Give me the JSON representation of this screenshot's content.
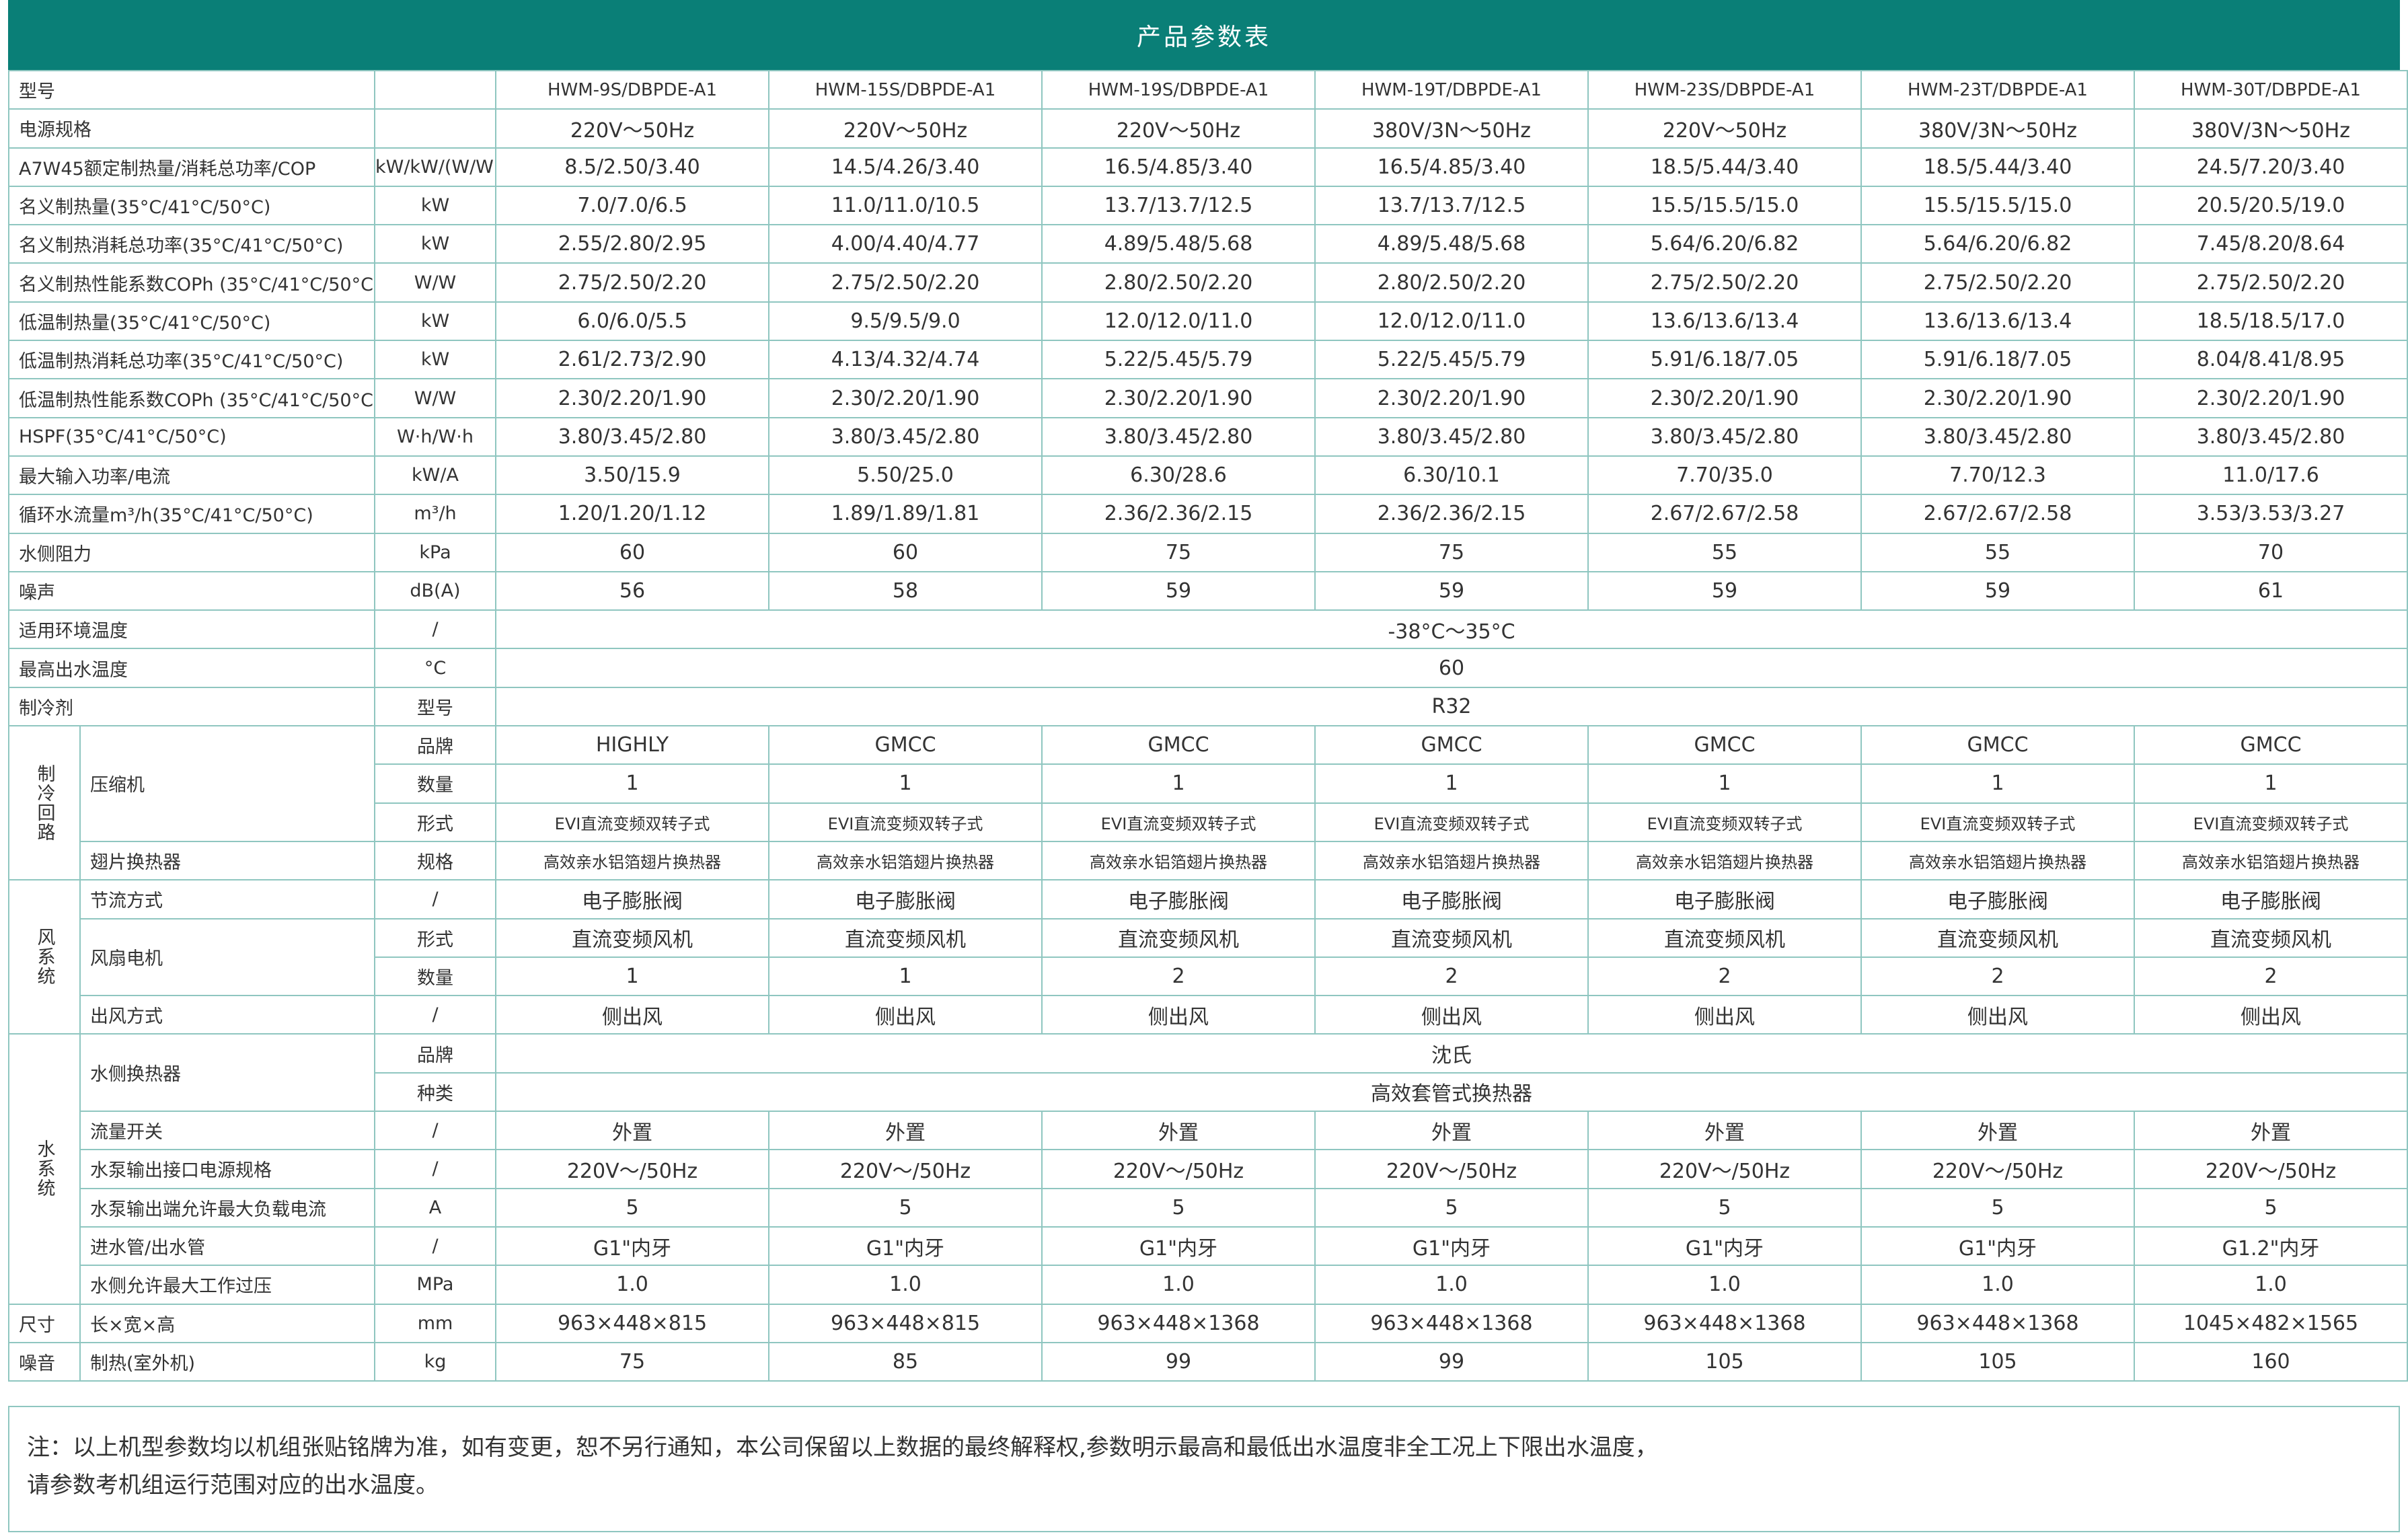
{
  "title": "产品参数表",
  "models": [
    "HWM-9S/DBPDE-A1",
    "HWM-15S/DBPDE-A1",
    "HWM-19S/DBPDE-A1",
    "HWM-19T/DBPDE-A1",
    "HWM-23S/DBPDE-A1",
    "HWM-23T/DBPDE-A1",
    "HWM-30T/DBPDE-A1"
  ],
  "rows": {
    "model_label": "型号",
    "power": {
      "label": "电源规格",
      "unit": "",
      "values": [
        "220V～50Hz",
        "220V～50Hz",
        "220V～50Hz",
        "380V/3N～50Hz",
        "220V～50Hz",
        "380V/3N～50Hz",
        "380V/3N～50Hz"
      ]
    },
    "a7w45": {
      "label": "A7W45额定制热量/消耗总功率/COP",
      "unit": "kW/kW/(W/W)",
      "values": [
        "8.5/2.50/3.40",
        "14.5/4.26/3.40",
        "16.5/4.85/3.40",
        "16.5/4.85/3.40",
        "18.5/5.44/3.40",
        "18.5/5.44/3.40",
        "24.5/7.20/3.40"
      ]
    },
    "nom_heat": {
      "label": "名义制热量(35°C/41°C/50°C)",
      "unit": "kW",
      "values": [
        "7.0/7.0/6.5",
        "11.0/11.0/10.5",
        "13.7/13.7/12.5",
        "13.7/13.7/12.5",
        "15.5/15.5/15.0",
        "15.5/15.5/15.0",
        "20.5/20.5/19.0"
      ]
    },
    "nom_power": {
      "label": "名义制热消耗总功率(35°C/41°C/50°C)",
      "unit": "kW",
      "values": [
        "2.55/2.80/2.95",
        "4.00/4.40/4.77",
        "4.89/5.48/5.68",
        "4.89/5.48/5.68",
        "5.64/6.20/6.82",
        "5.64/6.20/6.82",
        "7.45/8.20/8.64"
      ]
    },
    "nom_cop": {
      "label": "名义制热性能系数COPh (35°C/41°C/50°C)",
      "unit": "W/W",
      "values": [
        "2.75/2.50/2.20",
        "2.75/2.50/2.20",
        "2.80/2.50/2.20",
        "2.80/2.50/2.20",
        "2.75/2.50/2.20",
        "2.75/2.50/2.20",
        "2.75/2.50/2.20"
      ]
    },
    "low_heat": {
      "label": "低温制热量(35°C/41°C/50°C)",
      "unit": "kW",
      "values": [
        "6.0/6.0/5.5",
        "9.5/9.5/9.0",
        "12.0/12.0/11.0",
        "12.0/12.0/11.0",
        "13.6/13.6/13.4",
        "13.6/13.6/13.4",
        "18.5/18.5/17.0"
      ]
    },
    "low_power": {
      "label": "低温制热消耗总功率(35°C/41°C/50°C)",
      "unit": "kW",
      "values": [
        "2.61/2.73/2.90",
        "4.13/4.32/4.74",
        "5.22/5.45/5.79",
        "5.22/5.45/5.79",
        "5.91/6.18/7.05",
        "5.91/6.18/7.05",
        "8.04/8.41/8.95"
      ]
    },
    "low_cop": {
      "label": "低温制热性能系数COPh (35°C/41°C/50°C)",
      "unit": "W/W",
      "values": [
        "2.30/2.20/1.90",
        "2.30/2.20/1.90",
        "2.30/2.20/1.90",
        "2.30/2.20/1.90",
        "2.30/2.20/1.90",
        "2.30/2.20/1.90",
        "2.30/2.20/1.90"
      ]
    },
    "hspf": {
      "label": "HSPF(35°C/41°C/50°C)",
      "unit": "W·h/W·h",
      "values": [
        "3.80/3.45/2.80",
        "3.80/3.45/2.80",
        "3.80/3.45/2.80",
        "3.80/3.45/2.80",
        "3.80/3.45/2.80",
        "3.80/3.45/2.80",
        "3.80/3.45/2.80"
      ]
    },
    "max_input": {
      "label": "最大输入功率/电流",
      "unit": "kW/A",
      "values": [
        "3.50/15.9",
        "5.50/25.0",
        "6.30/28.6",
        "6.30/10.1",
        "7.70/35.0",
        "7.70/12.3",
        "11.0/17.6"
      ]
    },
    "flow": {
      "label": "循环水流量m³/h(35°C/41°C/50°C)",
      "unit": "m³/h",
      "values": [
        "1.20/1.20/1.12",
        "1.89/1.89/1.81",
        "2.36/2.36/2.15",
        "2.36/2.36/2.15",
        "2.67/2.67/2.58",
        "2.67/2.67/2.58",
        "3.53/3.53/3.27"
      ]
    },
    "water_res": {
      "label": "水侧阻力",
      "unit": "kPa",
      "values": [
        "60",
        "60",
        "75",
        "75",
        "55",
        "55",
        "70"
      ]
    },
    "noise": {
      "label": "噪声",
      "unit": "dB(A)",
      "values": [
        "56",
        "58",
        "59",
        "59",
        "59",
        "59",
        "61"
      ]
    },
    "ambient": {
      "label": "适用环境温度",
      "unit": "/",
      "value": "-38°C～35°C"
    },
    "max_out": {
      "label": "最高出水温度",
      "unit": "°C",
      "value": "60"
    },
    "refrigerant": {
      "label": "制冷剂",
      "unit": "型号",
      "value": "R32"
    }
  },
  "refrig_circuit": {
    "group": "制冷回路",
    "compressor": {
      "label": "压缩机",
      "brand": {
        "unit": "品牌",
        "values": [
          "HIGHLY",
          "GMCC",
          "GMCC",
          "GMCC",
          "GMCC",
          "GMCC",
          "GMCC"
        ]
      },
      "qty": {
        "unit": "数量",
        "values": [
          "1",
          "1",
          "1",
          "1",
          "1",
          "1",
          "1"
        ]
      },
      "form": {
        "unit": "形式",
        "values": [
          "EVI直流变频双转子式",
          "EVI直流变频双转子式",
          "EVI直流变频双转子式",
          "EVI直流变频双转子式",
          "EVI直流变频双转子式",
          "EVI直流变频双转子式",
          "EVI直流变频双转子式"
        ]
      }
    },
    "fin": {
      "label": "翅片换热器",
      "unit": "规格",
      "values": [
        "高效亲水铝箔翅片换热器",
        "高效亲水铝箔翅片换热器",
        "高效亲水铝箔翅片换热器",
        "高效亲水铝箔翅片换热器",
        "高效亲水铝箔翅片换热器",
        "高效亲水铝箔翅片换热器",
        "高效亲水铝箔翅片换热器"
      ]
    }
  },
  "wind_system": {
    "group": "风系统",
    "throttle": {
      "label": "节流方式",
      "unit": "/",
      "values": [
        "电子膨胀阀",
        "电子膨胀阀",
        "电子膨胀阀",
        "电子膨胀阀",
        "电子膨胀阀",
        "电子膨胀阀",
        "电子膨胀阀"
      ]
    },
    "fan": {
      "label": "风扇电机",
      "form": {
        "unit": "形式",
        "values": [
          "直流变频风机",
          "直流变频风机",
          "直流变频风机",
          "直流变频风机",
          "直流变频风机",
          "直流变频风机",
          "直流变频风机"
        ]
      },
      "qty": {
        "unit": "数量",
        "values": [
          "1",
          "1",
          "2",
          "2",
          "2",
          "2",
          "2"
        ]
      }
    },
    "outlet": {
      "label": "出风方式",
      "unit": "/",
      "values": [
        "侧出风",
        "侧出风",
        "侧出风",
        "侧出风",
        "侧出风",
        "侧出风",
        "侧出风"
      ]
    }
  },
  "water_system": {
    "group": "水系统",
    "hx": {
      "label": "水侧换热器",
      "brand": {
        "unit": "品牌",
        "value": "沈氏"
      },
      "type": {
        "unit": "种类",
        "value": "高效套管式换热器"
      }
    },
    "flow_switch": {
      "label": "流量开关",
      "unit": "/",
      "values": [
        "外置",
        "外置",
        "外置",
        "外置",
        "外置",
        "外置",
        "外置"
      ]
    },
    "pump_power": {
      "label": "水泵输出接口电源规格",
      "unit": "/",
      "values": [
        "220V～/50Hz",
        "220V～/50Hz",
        "220V～/50Hz",
        "220V～/50Hz",
        "220V～/50Hz",
        "220V～/50Hz",
        "220V～/50Hz"
      ]
    },
    "pump_current": {
      "label": "水泵输出端允许最大负载电流",
      "unit": "A",
      "values": [
        "5",
        "5",
        "5",
        "5",
        "5",
        "5",
        "5"
      ]
    },
    "pipes": {
      "label": "进水管/出水管",
      "unit": "/",
      "values": [
        "G1\"内牙",
        "G1\"内牙",
        "G1\"内牙",
        "G1\"内牙",
        "G1\"内牙",
        "G1\"内牙",
        "G1.2\"内牙"
      ]
    },
    "max_press": {
      "label": "水侧允许最大工作过压",
      "unit": "MPa",
      "values": [
        "1.0",
        "1.0",
        "1.0",
        "1.0",
        "1.0",
        "1.0",
        "1.0"
      ]
    }
  },
  "dimensions": {
    "group": "尺寸",
    "label": "长×宽×高",
    "unit": "mm",
    "values": [
      "963×448×815",
      "963×448×815",
      "963×448×1368",
      "963×448×1368",
      "963×448×1368",
      "963×448×1368",
      "1045×482×1565"
    ]
  },
  "weight": {
    "group": "噪音",
    "label": "制热(室外机)",
    "unit": "kg",
    "values": [
      "75",
      "85",
      "99",
      "99",
      "105",
      "105",
      "160"
    ]
  },
  "notes": {
    "line1": "注：以上机型参数均以机组张贴铭牌为准，如有变更，恕不另行通知，本公司保留以上数据的最终解释权,参数明示最高和最低出水温度非全工况上下限出水温度，",
    "line2": "请参数考机组运行范围对应的出水温度。"
  }
}
